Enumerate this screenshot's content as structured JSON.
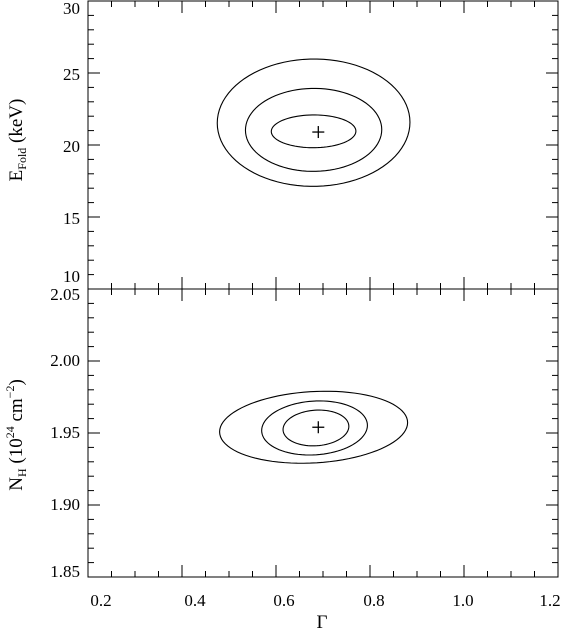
{
  "chart_data": [
    {
      "type": "contour",
      "panel": "top",
      "xlim": [
        0.2,
        1.2
      ],
      "ylim": [
        10,
        30
      ],
      "yticks": [
        10,
        15,
        20,
        25,
        30
      ],
      "ylabel": {
        "main": "E",
        "sub": "Fold",
        "rest": " (keV)"
      },
      "best_fit": {
        "x": 0.69,
        "y": 20.9
      },
      "contours": [
        {
          "cx": 0.68,
          "cy": 20.95,
          "x_extent": [
            0.59,
            0.77
          ],
          "y_extent": [
            19.8,
            22.1
          ],
          "tilt": 0.13
        },
        {
          "cx": 0.68,
          "cy": 21.05,
          "x_extent": [
            0.535,
            0.825
          ],
          "y_extent": [
            18.3,
            24.1
          ],
          "tilt": 0.135
        },
        {
          "cx": 0.68,
          "cy": 21.55,
          "x_extent": [
            0.475,
            0.885
          ],
          "y_extent": [
            17.1,
            26.0
          ],
          "tilt": 0.135
        }
      ]
    },
    {
      "type": "contour",
      "panel": "bottom",
      "xlim": [
        0.2,
        1.2
      ],
      "ylim": [
        1.85,
        2.05
      ],
      "yticks": [
        "1.85",
        "1.90",
        "1.95",
        "2.00",
        "2.05"
      ],
      "xticks": [
        "0.2",
        "0.4",
        "0.6",
        "0.8",
        "1.0",
        "1.2"
      ],
      "xlabel": "Γ",
      "ylabel": {
        "main": "N",
        "sub": "H",
        "rest": " (10",
        "sup": "24",
        "rest2": " cm",
        "sup2": "−2",
        "rest3": ")"
      },
      "best_fit": {
        "x": 0.69,
        "y": 1.954
      },
      "contours": [
        {
          "cx": 0.685,
          "cy": 1.9535,
          "x_extent": [
            0.615,
            0.755
          ],
          "y_extent": [
            1.94,
            1.967
          ],
          "tilt": 0.016
        },
        {
          "cx": 0.682,
          "cy": 1.9535,
          "x_extent": [
            0.575,
            0.8
          ],
          "y_extent": [
            1.933,
            1.974
          ],
          "tilt": 0.016
        },
        {
          "cx": 0.68,
          "cy": 1.954,
          "x_extent": [
            0.48,
            0.88
          ],
          "y_extent": [
            1.926,
            1.982
          ],
          "tilt": 0.016
        }
      ]
    }
  ]
}
